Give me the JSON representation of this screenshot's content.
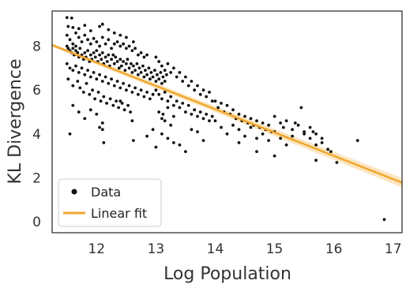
{
  "chart_data": {
    "type": "scatter",
    "xlabel": "Log Population",
    "ylabel": "KL Divergence",
    "xlim": [
      11.25,
      17.15
    ],
    "ylim": [
      -0.5,
      9.6
    ],
    "x_ticks": [
      12,
      13,
      14,
      15,
      16,
      17
    ],
    "y_ticks": [
      0,
      2,
      4,
      6,
      8
    ],
    "grid": false,
    "legend": {
      "position": "bottom-left",
      "entries": [
        "Data",
        "Linear fit"
      ]
    },
    "colors": {
      "points": "#111111",
      "fit": "#f0a830",
      "band": "#f7c878",
      "frame": "#222222"
    },
    "fit": {
      "x": [
        11.25,
        17.15
      ],
      "y": [
        8.05,
        1.78
      ]
    },
    "series": [
      {
        "name": "Data",
        "points": [
          [
            11.5,
            9.3
          ],
          [
            11.58,
            9.28
          ],
          [
            11.52,
            8.9
          ],
          [
            11.6,
            8.85
          ],
          [
            11.7,
            8.8
          ],
          [
            11.8,
            8.95
          ],
          [
            11.9,
            8.7
          ],
          [
            12.05,
            8.9
          ],
          [
            12.2,
            8.75
          ],
          [
            12.3,
            8.6
          ],
          [
            12.4,
            8.5
          ],
          [
            12.5,
            8.4
          ],
          [
            12.62,
            8.2
          ],
          [
            12.1,
            9.0
          ],
          [
            11.65,
            8.6
          ],
          [
            11.5,
            8.5
          ],
          [
            11.55,
            8.3
          ],
          [
            11.6,
            8.1
          ],
          [
            11.65,
            8.0
          ],
          [
            11.7,
            8.4
          ],
          [
            11.75,
            8.2
          ],
          [
            11.8,
            8.5
          ],
          [
            11.85,
            8.3
          ],
          [
            11.9,
            8.1
          ],
          [
            11.95,
            8.35
          ],
          [
            12.0,
            8.2
          ],
          [
            12.05,
            8.0
          ],
          [
            12.1,
            8.4
          ],
          [
            12.15,
            8.1
          ],
          [
            12.2,
            8.3
          ],
          [
            12.25,
            7.9
          ],
          [
            12.3,
            8.1
          ],
          [
            12.35,
            8.2
          ],
          [
            12.4,
            8.0
          ],
          [
            12.45,
            8.1
          ],
          [
            12.5,
            7.9
          ],
          [
            12.55,
            8.0
          ],
          [
            12.6,
            7.8
          ],
          [
            12.65,
            7.9
          ],
          [
            12.7,
            7.6
          ],
          [
            12.75,
            7.7
          ],
          [
            12.8,
            7.5
          ],
          [
            12.85,
            7.6
          ],
          [
            11.5,
            8.0
          ],
          [
            11.52,
            7.9
          ],
          [
            11.55,
            7.8
          ],
          [
            11.58,
            7.7
          ],
          [
            11.6,
            7.9
          ],
          [
            11.62,
            7.6
          ],
          [
            11.65,
            7.8
          ],
          [
            11.68,
            7.7
          ],
          [
            11.7,
            7.5
          ],
          [
            11.72,
            7.9
          ],
          [
            11.75,
            7.6
          ],
          [
            11.78,
            7.4
          ],
          [
            11.8,
            7.7
          ],
          [
            11.82,
            7.5
          ],
          [
            11.85,
            7.8
          ],
          [
            11.88,
            7.3
          ],
          [
            11.9,
            7.6
          ],
          [
            11.92,
            7.4
          ],
          [
            11.95,
            7.7
          ],
          [
            11.98,
            7.5
          ],
          [
            12.0,
            7.8
          ],
          [
            12.02,
            7.3
          ],
          [
            12.05,
            7.6
          ],
          [
            12.08,
            7.4
          ],
          [
            12.1,
            7.7
          ],
          [
            12.12,
            7.2
          ],
          [
            12.15,
            7.5
          ],
          [
            12.18,
            7.3
          ],
          [
            12.2,
            7.6
          ],
          [
            12.22,
            7.1
          ],
          [
            12.25,
            7.4
          ],
          [
            12.28,
            7.6
          ],
          [
            12.3,
            7.2
          ],
          [
            12.32,
            7.5
          ],
          [
            12.35,
            7.3
          ],
          [
            12.38,
            7.0
          ],
          [
            12.4,
            7.4
          ],
          [
            12.42,
            7.1
          ],
          [
            12.45,
            7.3
          ],
          [
            12.48,
            6.9
          ],
          [
            12.5,
            7.2
          ],
          [
            12.52,
            7.4
          ],
          [
            12.55,
            7.0
          ],
          [
            12.58,
            7.2
          ],
          [
            12.6,
            6.8
          ],
          [
            12.62,
            7.1
          ],
          [
            12.65,
            6.9
          ],
          [
            12.68,
            7.2
          ],
          [
            12.7,
            6.7
          ],
          [
            12.72,
            7.0
          ],
          [
            12.75,
            6.8
          ],
          [
            12.78,
            7.1
          ],
          [
            12.8,
            6.6
          ],
          [
            12.82,
            6.9
          ],
          [
            12.85,
            6.7
          ],
          [
            12.88,
            7.0
          ],
          [
            12.9,
            6.5
          ],
          [
            12.92,
            6.8
          ],
          [
            12.95,
            6.6
          ],
          [
            12.98,
            6.9
          ],
          [
            13.0,
            6.4
          ],
          [
            13.02,
            6.7
          ],
          [
            13.05,
            6.5
          ],
          [
            13.08,
            6.8
          ],
          [
            13.1,
            6.3
          ],
          [
            13.12,
            6.6
          ],
          [
            13.15,
            6.4
          ],
          [
            13.18,
            6.7
          ],
          [
            11.5,
            7.2
          ],
          [
            11.55,
            7.0
          ],
          [
            11.6,
            6.9
          ],
          [
            11.65,
            7.1
          ],
          [
            11.7,
            6.8
          ],
          [
            11.75,
            7.0
          ],
          [
            11.8,
            6.7
          ],
          [
            11.85,
            6.9
          ],
          [
            11.9,
            6.6
          ],
          [
            11.95,
            6.8
          ],
          [
            12.0,
            6.5
          ],
          [
            12.05,
            6.7
          ],
          [
            12.1,
            6.4
          ],
          [
            12.15,
            6.6
          ],
          [
            12.2,
            6.3
          ],
          [
            12.25,
            6.5
          ],
          [
            12.3,
            6.2
          ],
          [
            12.35,
            6.4
          ],
          [
            12.4,
            6.1
          ],
          [
            12.45,
            6.3
          ],
          [
            12.5,
            6.0
          ],
          [
            12.55,
            6.2
          ],
          [
            12.6,
            5.9
          ],
          [
            12.65,
            6.1
          ],
          [
            12.7,
            5.8
          ],
          [
            12.75,
            6.0
          ],
          [
            12.8,
            5.7
          ],
          [
            12.85,
            5.9
          ],
          [
            12.9,
            5.6
          ],
          [
            12.95,
            5.8
          ],
          [
            11.52,
            6.5
          ],
          [
            11.6,
            6.2
          ],
          [
            11.68,
            6.4
          ],
          [
            11.72,
            6.1
          ],
          [
            11.78,
            5.9
          ],
          [
            11.83,
            6.3
          ],
          [
            11.88,
            5.8
          ],
          [
            11.93,
            6.0
          ],
          [
            11.97,
            5.6
          ],
          [
            12.03,
            5.9
          ],
          [
            12.07,
            5.5
          ],
          [
            12.12,
            5.7
          ],
          [
            12.17,
            5.4
          ],
          [
            12.23,
            5.6
          ],
          [
            12.28,
            5.3
          ],
          [
            12.33,
            5.5
          ],
          [
            12.37,
            5.2
          ],
          [
            12.43,
            5.4
          ],
          [
            12.47,
            5.1
          ],
          [
            12.53,
            5.3
          ],
          [
            12.57,
            5.0
          ],
          [
            11.6,
            5.3
          ],
          [
            11.7,
            5.0
          ],
          [
            11.8,
            4.7
          ],
          [
            11.9,
            5.1
          ],
          [
            12.0,
            4.9
          ],
          [
            12.1,
            4.5
          ],
          [
            11.55,
            4.0
          ],
          [
            12.05,
            4.3
          ],
          [
            12.1,
            4.2
          ],
          [
            12.12,
            3.6
          ],
          [
            12.4,
            5.5
          ],
          [
            12.6,
            4.6
          ],
          [
            12.62,
            3.7
          ],
          [
            13.0,
            7.5
          ],
          [
            13.05,
            7.3
          ],
          [
            13.1,
            7.1
          ],
          [
            13.15,
            6.9
          ],
          [
            13.2,
            7.2
          ],
          [
            13.25,
            6.8
          ],
          [
            13.3,
            7.0
          ],
          [
            13.35,
            6.6
          ],
          [
            13.4,
            6.8
          ],
          [
            13.45,
            6.4
          ],
          [
            13.5,
            6.6
          ],
          [
            13.55,
            6.2
          ],
          [
            13.6,
            6.4
          ],
          [
            13.65,
            6.0
          ],
          [
            13.7,
            6.2
          ],
          [
            13.75,
            5.8
          ],
          [
            13.8,
            6.0
          ],
          [
            13.85,
            5.7
          ],
          [
            13.9,
            5.9
          ],
          [
            13.95,
            5.5
          ],
          [
            13.0,
            6.0
          ],
          [
            13.05,
            5.8
          ],
          [
            13.1,
            5.6
          ],
          [
            13.15,
            5.9
          ],
          [
            13.2,
            5.5
          ],
          [
            13.25,
            5.7
          ],
          [
            13.3,
            5.3
          ],
          [
            13.35,
            5.5
          ],
          [
            13.4,
            5.2
          ],
          [
            13.45,
            5.4
          ],
          [
            13.5,
            5.0
          ],
          [
            13.55,
            5.3
          ],
          [
            13.6,
            4.9
          ],
          [
            13.65,
            5.1
          ],
          [
            13.7,
            4.8
          ],
          [
            13.75,
            5.0
          ],
          [
            13.8,
            4.7
          ],
          [
            13.85,
            4.9
          ],
          [
            13.9,
            4.6
          ],
          [
            13.95,
            4.8
          ],
          [
            13.05,
            5.0
          ],
          [
            13.1,
            4.7
          ],
          [
            13.12,
            4.9
          ],
          [
            13.15,
            4.6
          ],
          [
            13.2,
            5.2
          ],
          [
            13.25,
            4.4
          ],
          [
            13.3,
            4.8
          ],
          [
            13.1,
            4.0
          ],
          [
            13.2,
            3.8
          ],
          [
            13.3,
            3.6
          ],
          [
            13.4,
            3.5
          ],
          [
            13.8,
            3.7
          ],
          [
            13.5,
            3.2
          ],
          [
            13.6,
            4.2
          ],
          [
            13.7,
            4.1
          ],
          [
            13.0,
            3.4
          ],
          [
            12.95,
            4.2
          ],
          [
            12.85,
            3.9
          ],
          [
            14.0,
            5.5
          ],
          [
            14.05,
            5.2
          ],
          [
            14.1,
            5.4
          ],
          [
            14.15,
            5.0
          ],
          [
            14.2,
            5.3
          ],
          [
            14.25,
            4.9
          ],
          [
            14.3,
            5.1
          ],
          [
            14.35,
            4.7
          ],
          [
            14.4,
            4.9
          ],
          [
            14.45,
            4.6
          ],
          [
            14.5,
            4.8
          ],
          [
            14.55,
            4.5
          ],
          [
            14.6,
            4.7
          ],
          [
            14.65,
            4.4
          ],
          [
            14.7,
            4.6
          ],
          [
            14.75,
            4.3
          ],
          [
            14.8,
            4.5
          ],
          [
            14.85,
            4.2
          ],
          [
            14.9,
            4.4
          ],
          [
            14.95,
            4.1
          ],
          [
            14.0,
            4.6
          ],
          [
            14.1,
            4.3
          ],
          [
            14.2,
            4.0
          ],
          [
            14.3,
            4.4
          ],
          [
            14.4,
            4.2
          ],
          [
            14.5,
            3.9
          ],
          [
            14.6,
            4.3
          ],
          [
            14.7,
            3.8
          ],
          [
            14.8,
            4.0
          ],
          [
            14.9,
            3.7
          ],
          [
            15.0,
            4.1
          ],
          [
            15.1,
            3.8
          ],
          [
            15.2,
            3.5
          ],
          [
            15.3,
            3.9
          ],
          [
            15.4,
            4.4
          ],
          [
            15.5,
            4.1
          ],
          [
            15.6,
            3.8
          ],
          [
            15.7,
            3.5
          ],
          [
            15.8,
            3.6
          ],
          [
            15.9,
            3.3
          ],
          [
            15.95,
            3.2
          ],
          [
            15.0,
            4.8
          ],
          [
            15.1,
            4.5
          ],
          [
            15.15,
            4.3
          ],
          [
            15.2,
            4.6
          ],
          [
            15.3,
            4.2
          ],
          [
            15.35,
            4.5
          ],
          [
            15.45,
            5.2
          ],
          [
            15.5,
            4.0
          ],
          [
            15.6,
            4.3
          ],
          [
            15.65,
            4.1
          ],
          [
            15.7,
            4.0
          ],
          [
            15.8,
            3.8
          ],
          [
            14.7,
            3.2
          ],
          [
            15.0,
            3.0
          ],
          [
            14.4,
            3.6
          ],
          [
            15.7,
            2.8
          ],
          [
            16.05,
            2.7
          ],
          [
            16.4,
            3.7
          ],
          [
            16.85,
            0.1
          ]
        ]
      }
    ]
  }
}
